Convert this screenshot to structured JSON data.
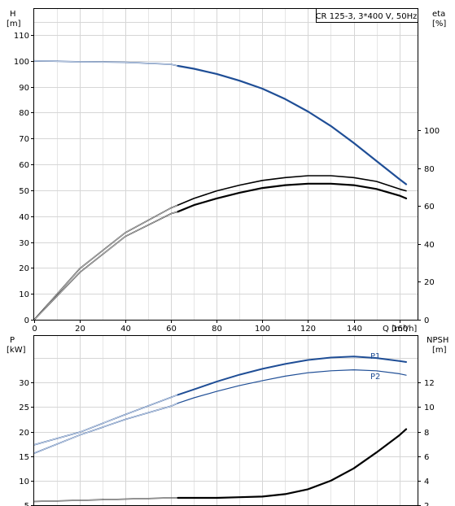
{
  "chart_data": [
    {
      "type": "line",
      "title": "CR 125-3, 3*400 V, 50Hz",
      "xlabel": "Q [m³/h]",
      "xlim": [
        0,
        168
      ],
      "x_ticks": [
        0,
        20,
        40,
        60,
        80,
        100,
        120,
        140,
        160
      ],
      "x_tick_labels": [
        "0",
        "20",
        "40",
        "60",
        "80",
        "100",
        "120",
        "140",
        "160"
      ],
      "y_left": {
        "unit": "H",
        "unit2": "[m]",
        "lim": [
          0,
          120
        ],
        "ticks": [
          0,
          10,
          20,
          30,
          40,
          50,
          60,
          70,
          80,
          90,
          100,
          110
        ]
      },
      "y_right": {
        "unit": "eta",
        "unit2": "[%]",
        "lim": [
          0,
          164
        ],
        "ticks": [
          0,
          20,
          40,
          60,
          80,
          100
        ]
      },
      "grid": true,
      "series": [
        {
          "axis": "left",
          "color": "#1f4e96",
          "width": 2.2,
          "x": [
            0,
            20,
            40,
            60,
            63,
            70,
            80,
            90,
            100,
            110,
            120,
            130,
            140,
            150,
            160,
            163
          ],
          "y": [
            100,
            99.6,
            99.4,
            98.6,
            98,
            96.9,
            94.9,
            92.3,
            89.2,
            85.2,
            80.4,
            74.8,
            68.3,
            61.3,
            54.3,
            52.3
          ],
          "dashed_until": 63
        },
        {
          "axis": "right",
          "color": "#000000",
          "width": 1.6,
          "x": [
            0,
            20,
            40,
            60,
            63,
            70,
            80,
            90,
            100,
            110,
            120,
            130,
            140,
            150,
            160,
            163
          ],
          "y": [
            0,
            27,
            46,
            59,
            60.5,
            64,
            68,
            71,
            73.5,
            75,
            76,
            76,
            75,
            73,
            69,
            68
          ],
          "dashed_until": 63
        },
        {
          "axis": "right",
          "color": "#000000",
          "width": 2.2,
          "x": [
            0,
            20,
            40,
            60,
            63,
            70,
            80,
            90,
            100,
            110,
            120,
            130,
            140,
            150,
            160,
            163
          ],
          "y": [
            0,
            25,
            44,
            56,
            57,
            60.5,
            64,
            67,
            69.5,
            71,
            71.8,
            71.8,
            71,
            69,
            65.5,
            64
          ],
          "dashed_until": 63
        }
      ]
    },
    {
      "type": "line",
      "xlim": [
        0,
        168
      ],
      "y_left": {
        "unit": "P",
        "unit2": "[kW]",
        "lim": [
          5,
          39.5
        ],
        "ticks": [
          5,
          10,
          15,
          20,
          25,
          30
        ],
        "tick_labels": [
          "5",
          "10",
          "15",
          "20",
          "25",
          "30"
        ]
      },
      "y_right": {
        "unit": "NPSH",
        "unit2": "[m]",
        "lim": [
          2,
          15.8
        ],
        "ticks": [
          2,
          4,
          6,
          8,
          10,
          12
        ],
        "tick_labels": [
          "2",
          "4",
          "6",
          "8",
          "10",
          "12"
        ]
      },
      "grid": true,
      "series": [
        {
          "name": "P1",
          "axis": "left",
          "color": "#1f4e96",
          "width": 2.0,
          "x": [
            0,
            20,
            40,
            60,
            63,
            70,
            80,
            90,
            100,
            110,
            120,
            130,
            140,
            150,
            160,
            163
          ],
          "y": [
            17.3,
            19.9,
            23.5,
            27.0,
            27.5,
            28.6,
            30.2,
            31.6,
            32.8,
            33.8,
            34.6,
            35.1,
            35.3,
            35.0,
            34.4,
            34.2
          ],
          "dashed_until": 63
        },
        {
          "name": "P2",
          "axis": "left",
          "color": "#1f4e96",
          "width": 1.2,
          "x": [
            0,
            20,
            40,
            60,
            63,
            70,
            80,
            90,
            100,
            110,
            120,
            130,
            140,
            150,
            160,
            163
          ],
          "y": [
            15.6,
            19.3,
            22.5,
            25.2,
            25.8,
            26.9,
            28.2,
            29.4,
            30.4,
            31.3,
            32.0,
            32.4,
            32.6,
            32.4,
            31.8,
            31.5
          ],
          "dashed_until": 63
        },
        {
          "axis": "right",
          "color": "#000000",
          "width": 2.2,
          "x": [
            0,
            20,
            40,
            60,
            63,
            70,
            80,
            90,
            100,
            110,
            120,
            130,
            140,
            150,
            160,
            163
          ],
          "y": [
            2.3,
            2.4,
            2.5,
            2.6,
            2.6,
            2.6,
            2.6,
            2.65,
            2.7,
            2.9,
            3.3,
            4.0,
            5.0,
            6.3,
            7.7,
            8.2
          ],
          "dashed_until": 63
        }
      ]
    }
  ]
}
